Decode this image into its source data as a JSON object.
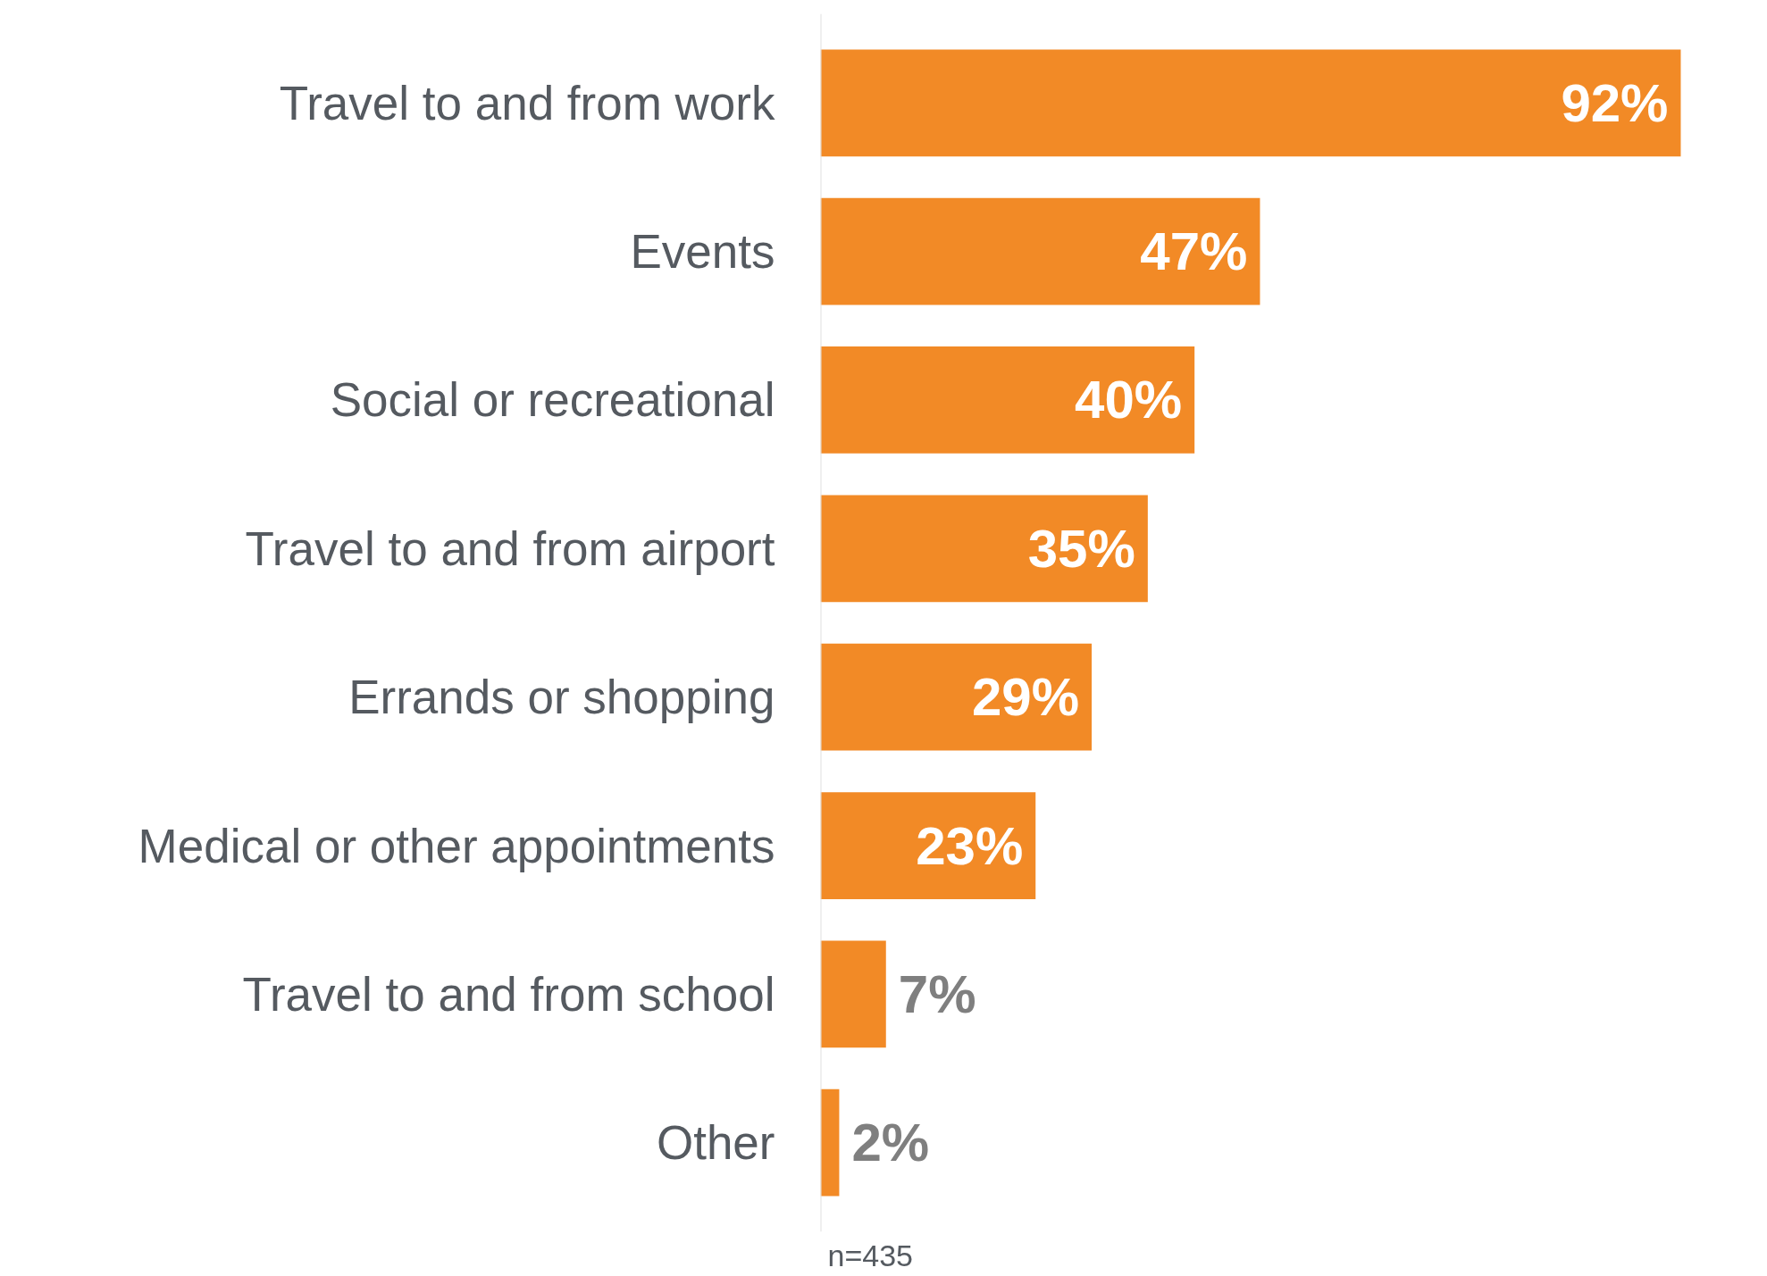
{
  "chart_data": {
    "type": "bar",
    "orientation": "horizontal",
    "categories": [
      "Travel to and from work",
      "Events",
      "Social or recreational",
      "Travel to and from airport",
      "Errands or shopping",
      "Medical or other appointments",
      "Travel to and from school",
      "Other"
    ],
    "values": [
      92,
      47,
      40,
      35,
      29,
      23,
      7,
      2
    ],
    "value_labels": [
      "92%",
      "47%",
      "40%",
      "35%",
      "29%",
      "23%",
      "7%",
      "2%"
    ],
    "color": "#f28a26",
    "annotations": [
      "n=435"
    ],
    "grid": false
  }
}
